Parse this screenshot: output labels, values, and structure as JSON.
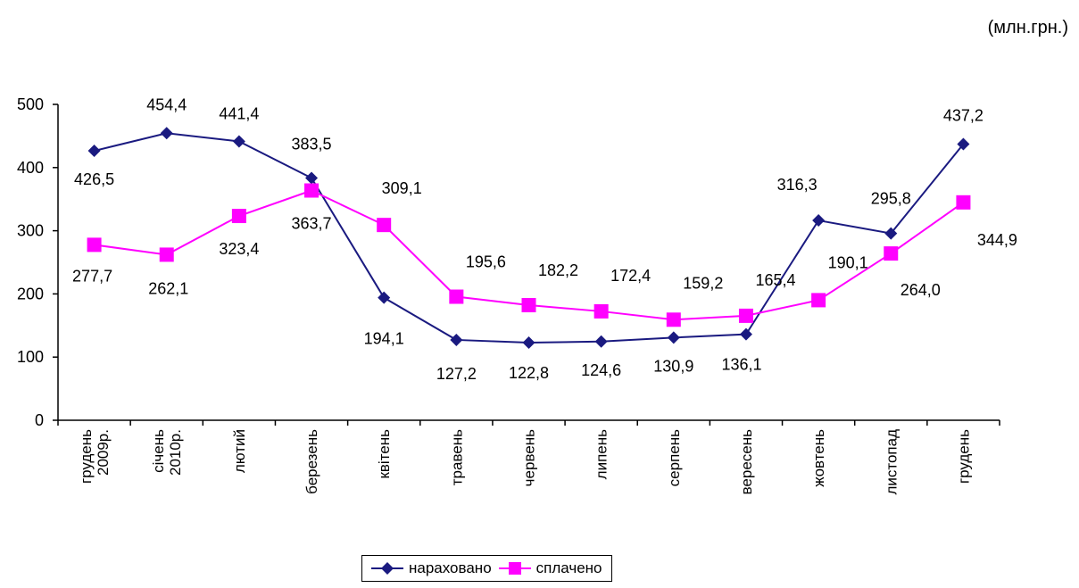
{
  "unit_label": "(млн.грн.)",
  "colors": {
    "accent_series_1": "#1a1a80",
    "accent_series_2": "#ff00ff"
  },
  "chart_data": {
    "type": "line",
    "categories": [
      [
        "грудень",
        "2009р."
      ],
      [
        "січень",
        "2010р."
      ],
      [
        "лютий"
      ],
      [
        "березень"
      ],
      [
        "квітень"
      ],
      [
        "травень"
      ],
      [
        "червень"
      ],
      [
        "липень"
      ],
      [
        "серпень"
      ],
      [
        "вересень"
      ],
      [
        "жовтень"
      ],
      [
        "листопад"
      ],
      [
        "грудень"
      ]
    ],
    "series": [
      {
        "name": "нараховано",
        "color": "#1a1a80",
        "marker": "diamond",
        "values": [
          426.5,
          454.4,
          441.4,
          383.5,
          194.1,
          127.2,
          122.8,
          124.6,
          130.9,
          136.1,
          316.3,
          295.8,
          437.2
        ],
        "labels": [
          "426,5",
          "454,4",
          "441,4",
          "383,5",
          "194,1",
          "127,2",
          "122,8",
          "124,6",
          "130,9",
          "136,1",
          "316,3",
          "295,8",
          "437,2"
        ]
      },
      {
        "name": "сплачено",
        "color": "#ff00ff",
        "marker": "square",
        "values": [
          277.7,
          262.1,
          323.4,
          363.7,
          309.1,
          195.6,
          182.2,
          172.4,
          159.2,
          165.4,
          190.1,
          264.0,
          344.9
        ],
        "labels": [
          "277,7",
          "262,1",
          "323,4",
          "363,7",
          "309,1",
          "195,6",
          "182,2",
          "172,4",
          "159,2",
          "165,4",
          "190,1",
          "264,0",
          "344,9"
        ]
      }
    ],
    "ylim": [
      0,
      500
    ],
    "yticks": [
      0,
      100,
      200,
      300,
      400,
      500
    ],
    "grid": false,
    "legend_position": "bottom-center"
  }
}
